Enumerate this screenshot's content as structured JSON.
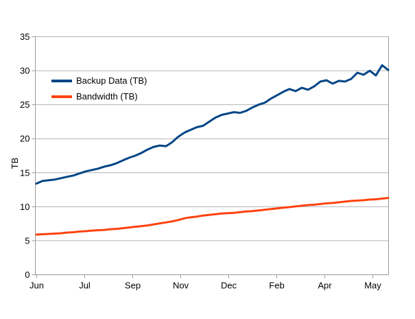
{
  "chart_data": {
    "type": "line",
    "title": "",
    "xlabel": "",
    "ylabel": "TB",
    "ylim": [
      0,
      35
    ],
    "yticks": [
      0,
      5,
      10,
      15,
      20,
      25,
      30,
      35
    ],
    "xticklabels": [
      "Jun",
      "Jul",
      "Sep",
      "Nov",
      "Dec",
      "Feb",
      "Apr",
      "May"
    ],
    "grid": true,
    "legend_position": "top-left-inside",
    "series": [
      {
        "name": "Backup Data (TB)",
        "color": "#004586",
        "values": [
          13.4,
          13.8,
          13.9,
          14.0,
          14.2,
          14.4,
          14.6,
          14.9,
          15.2,
          15.4,
          15.6,
          15.9,
          16.1,
          16.4,
          16.8,
          17.2,
          17.5,
          17.9,
          18.4,
          18.8,
          19.0,
          18.9,
          19.5,
          20.3,
          20.9,
          21.3,
          21.7,
          21.9,
          22.5,
          23.1,
          23.5,
          23.7,
          23.9,
          23.8,
          24.1,
          24.6,
          25.0,
          25.3,
          25.9,
          26.4,
          26.9,
          27.3,
          27.0,
          27.5,
          27.2,
          27.7,
          28.4,
          28.6,
          28.1,
          28.5,
          28.4,
          28.8,
          29.7,
          29.4,
          30.0,
          29.3,
          30.8,
          30.1
        ]
      },
      {
        "name": "Bandwidth (TB)",
        "color": "#ff420e",
        "values": [
          5.9,
          5.95,
          6.0,
          6.05,
          6.1,
          6.2,
          6.25,
          6.35,
          6.4,
          6.5,
          6.55,
          6.6,
          6.7,
          6.75,
          6.85,
          6.95,
          7.05,
          7.15,
          7.25,
          7.4,
          7.55,
          7.7,
          7.85,
          8.05,
          8.3,
          8.45,
          8.55,
          8.7,
          8.8,
          8.9,
          9.0,
          9.05,
          9.1,
          9.2,
          9.3,
          9.35,
          9.45,
          9.55,
          9.65,
          9.75,
          9.85,
          9.95,
          10.05,
          10.15,
          10.25,
          10.3,
          10.4,
          10.5,
          10.55,
          10.65,
          10.75,
          10.85,
          10.9,
          10.95,
          11.05,
          11.1,
          11.2,
          11.3
        ]
      }
    ]
  },
  "colors": {
    "background": "#ffffff",
    "gridline": "#b3b3b3",
    "axis": "#999999",
    "text": "#000000"
  }
}
